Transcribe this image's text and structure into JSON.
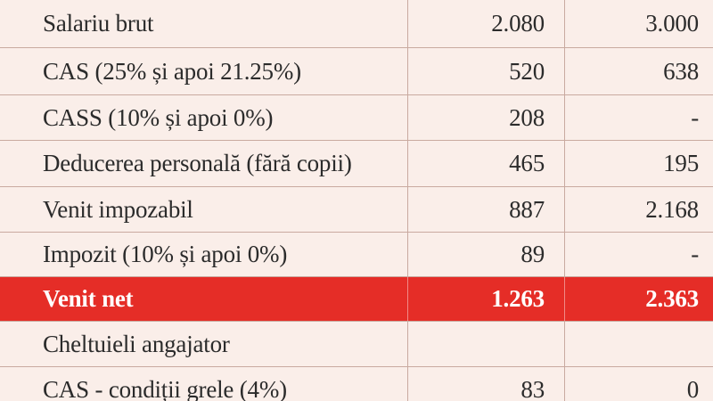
{
  "table": {
    "rows": [
      {
        "label": "Salariu brut",
        "v1": "2.080",
        "v2": "3.000"
      },
      {
        "label": "CAS (25% și apoi 21.25%)",
        "v1": "520",
        "v2": "638"
      },
      {
        "label": "CASS (10% și apoi 0%)",
        "v1": "208",
        "v2": "-"
      },
      {
        "label": "Deducerea personală (fără copii)",
        "v1": "465",
        "v2": "195"
      },
      {
        "label": "Venit impozabil",
        "v1": "887",
        "v2": "2.168"
      },
      {
        "label": "Impozit (10% și apoi 0%)",
        "v1": "89",
        "v2": "-"
      },
      {
        "label": "Venit net",
        "v1": "1.263",
        "v2": "2.363"
      },
      {
        "label": "Cheltuieli angajator",
        "v1": "",
        "v2": ""
      },
      {
        "label": "CAS - condiții grele (4%)",
        "v1": "83",
        "v2": "0"
      }
    ],
    "highlight_color": "#e52d27",
    "background_color": "#faeee9"
  }
}
